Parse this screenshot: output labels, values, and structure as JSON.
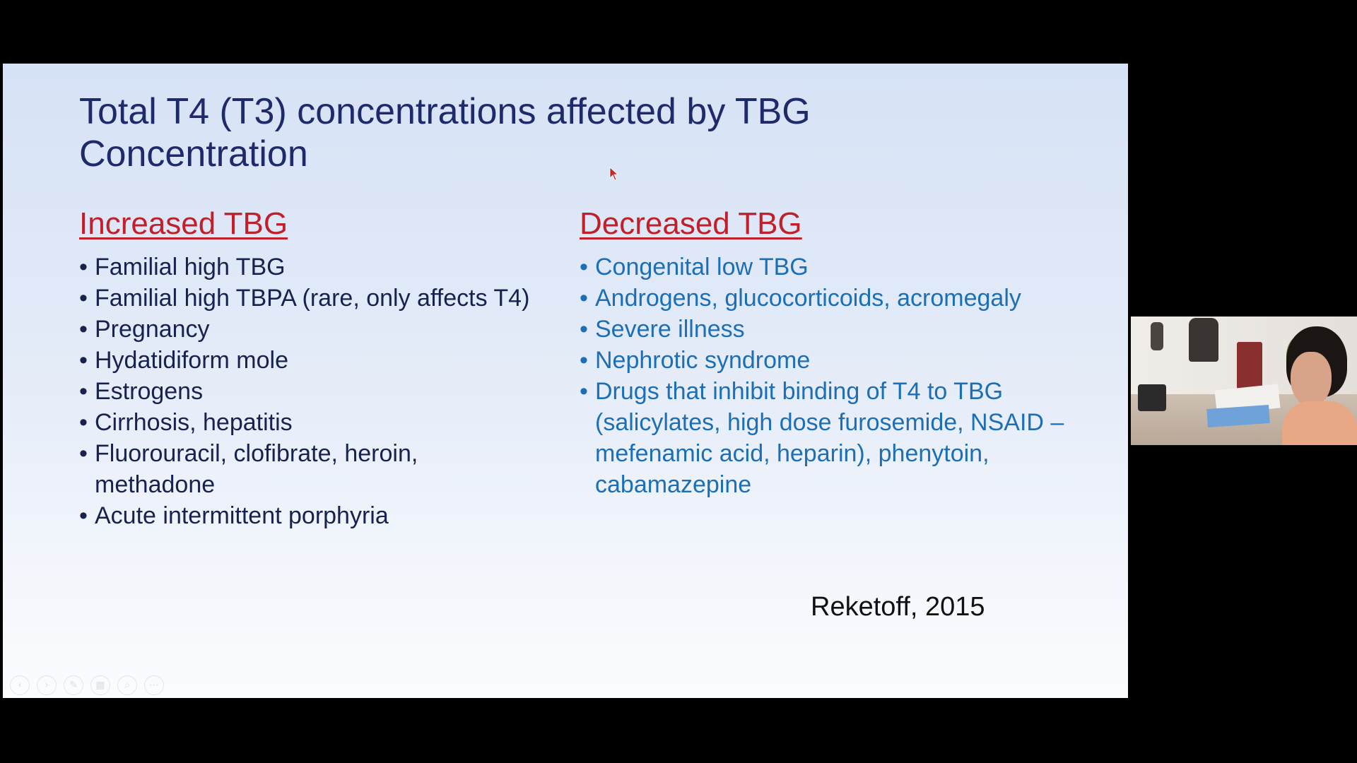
{
  "slide": {
    "title_line1": "Total T4 (T3) concentrations affected by TBG",
    "title_line2": "Concentration",
    "left_column": {
      "heading": "Increased TBG",
      "items": [
        "Familial high TBG",
        "Familial high TBPA (rare, only affects T4)",
        "Pregnancy",
        "Hydatidiform mole",
        "Estrogens",
        "Cirrhosis, hepatitis",
        "Fluorouracil, clofibrate, heroin, methadone",
        "Acute intermittent porphyria"
      ]
    },
    "right_column": {
      "heading": "Decreased TBG",
      "items": [
        "Congenital low TBG",
        "Androgens, glucocorticoids, acromegaly",
        "Severe illness",
        "Nephrotic syndrome",
        "Drugs that inhibit binding of T4 to TBG (salicylates, high dose furosemide, NSAID –mefenamic acid, heparin), phenytoin, cabamazepine"
      ]
    },
    "citation": "Reketoff,  2015",
    "bullet_char": "•"
  },
  "toolbar": {
    "icons": [
      "previous-icon",
      "next-icon",
      "pen-icon",
      "slides-icon",
      "zoom-icon",
      "more-icon"
    ]
  },
  "colors": {
    "title": "#1f2a6b",
    "heading": "#c0202a",
    "left_text": "#17224e",
    "right_text": "#1d6fb5",
    "background": "#000000"
  }
}
